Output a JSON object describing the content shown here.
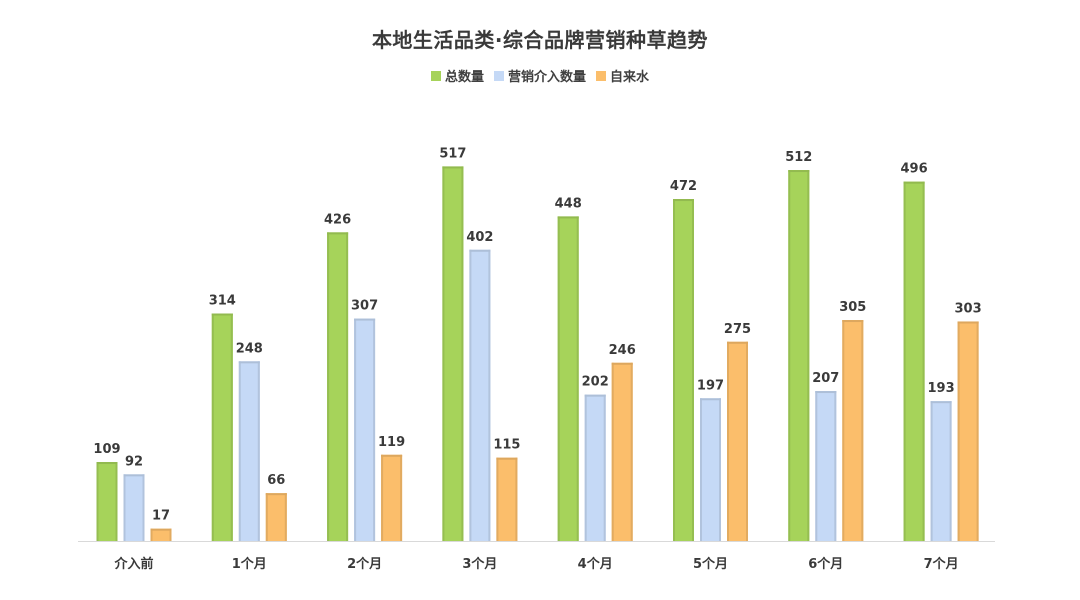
{
  "chart_data": {
    "type": "bar",
    "title": "本地生活品类·综合品牌营销种草趋势",
    "categories": [
      "介入前",
      "1个月",
      "2个月",
      "3个月",
      "4个月",
      "5个月",
      "6个月",
      "7个月"
    ],
    "series": [
      {
        "name": "总数量",
        "color": "#a6d35a",
        "values": [
          109,
          314,
          426,
          517,
          448,
          472,
          512,
          496
        ]
      },
      {
        "name": "营销介入数量",
        "color": "#c5d9f6",
        "values": [
          92,
          248,
          307,
          402,
          202,
          197,
          207,
          193
        ]
      },
      {
        "name": "自来水",
        "color": "#fbbe6b",
        "values": [
          17,
          66,
          119,
          115,
          246,
          275,
          305,
          303
        ]
      }
    ],
    "xlabel": "",
    "ylabel": "",
    "ylim": [
      0,
      560
    ],
    "grid": false,
    "legend": "top-center",
    "data_labels": true
  }
}
